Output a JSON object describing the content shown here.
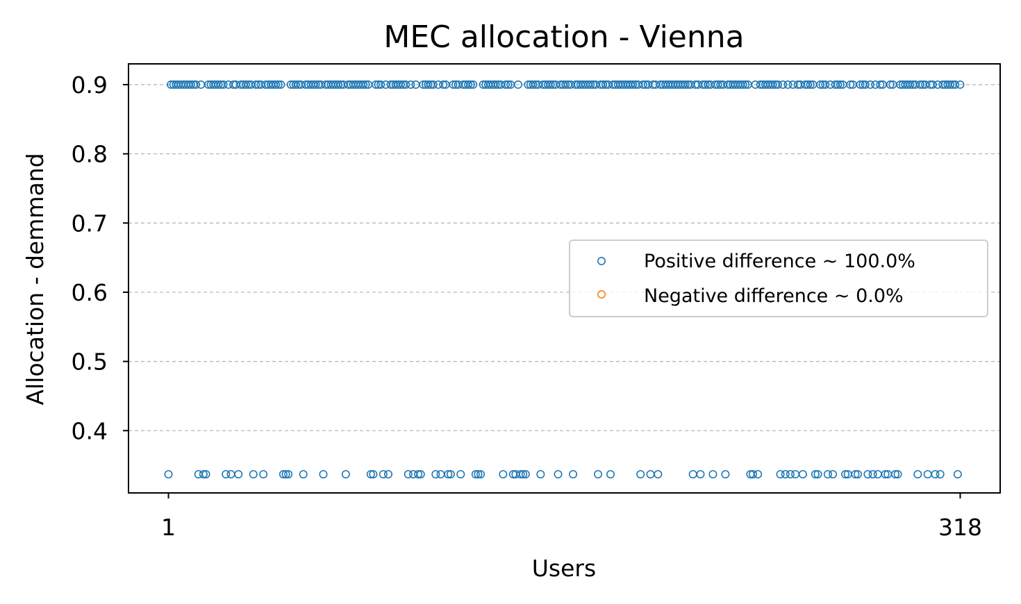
{
  "chart_data": {
    "type": "scatter",
    "title": "MEC allocation - Vienna",
    "xlabel": "Users",
    "ylabel": "Allocation - demmand",
    "xlim": [
      -15,
      334
    ],
    "ylim": [
      0.31,
      0.93
    ],
    "xticks": [
      1,
      318
    ],
    "xtick_labels": [
      "1",
      "318"
    ],
    "yticks": [
      0.4,
      0.5,
      0.6,
      0.7,
      0.8,
      0.9
    ],
    "ytick_labels": [
      "0.4",
      "0.5",
      "0.6",
      "0.7",
      "0.8",
      "0.9"
    ],
    "grid": "y-dashed",
    "legend_position": "center-right",
    "series": [
      {
        "name": "Positive difference ~ 100.0%",
        "color": "#1f77b4",
        "high_value": 0.9,
        "low_value": 0.337,
        "low_x": [
          1,
          13,
          15,
          16,
          24,
          26,
          29,
          35,
          39,
          47,
          48,
          49,
          55,
          63,
          72,
          82,
          83,
          87,
          89,
          97,
          99,
          101,
          102,
          108,
          110,
          113,
          114,
          118,
          124,
          125,
          126,
          135,
          139,
          140,
          142,
          143,
          144,
          150,
          157,
          163,
          173,
          178,
          190,
          194,
          197,
          211,
          214,
          219,
          224,
          234,
          235,
          237,
          246,
          248,
          250,
          252,
          255,
          260,
          261,
          265,
          267,
          272,
          273,
          276,
          277,
          281,
          283,
          285,
          288,
          289,
          292,
          293,
          301,
          305,
          308,
          310,
          317
        ],
        "high_x_exclude": [
          1,
          13,
          15,
          16,
          24,
          26,
          29,
          35,
          39,
          47,
          48,
          49,
          55,
          63,
          72,
          82,
          83,
          87,
          89,
          97,
          99,
          101,
          102,
          108,
          110,
          113,
          114,
          118,
          124,
          125,
          126,
          135,
          139,
          140,
          142,
          143,
          144,
          150,
          157,
          163,
          173,
          178,
          190,
          194,
          197,
          211,
          214,
          219,
          224,
          234,
          235,
          237,
          246,
          248,
          250,
          252,
          255,
          260,
          261,
          265,
          267,
          272,
          273,
          276,
          277,
          281,
          283,
          285,
          288,
          289,
          292,
          293,
          301,
          305,
          308,
          310,
          317
        ]
      },
      {
        "name": "Negative difference ~ 0.0%",
        "color": "#ff7f0e",
        "values": []
      }
    ],
    "n_users": 318
  }
}
